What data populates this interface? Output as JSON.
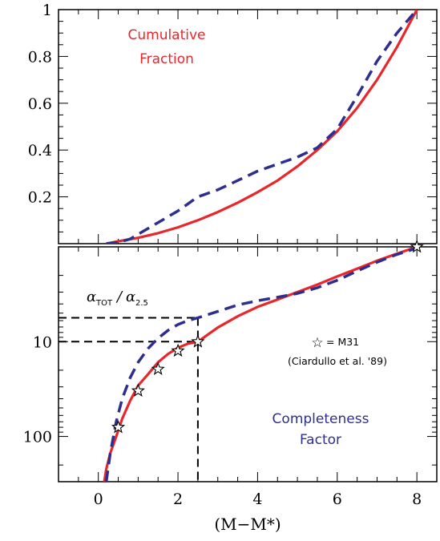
{
  "colors": {
    "red": "#e8262b",
    "blue": "#2e2e8f",
    "frame": "#000000"
  },
  "chart_data": [
    {
      "type": "line",
      "panel": "top",
      "xlim": [
        -1,
        8.5
      ],
      "ylim": [
        0,
        1
      ],
      "y_ticks": [
        0.2,
        0.4,
        0.6,
        0.8,
        1
      ],
      "y_tick_labels": [
        "0.2",
        "0.4",
        "0.6",
        "0.8",
        "1"
      ],
      "annotation": [
        "Cumulative",
        "Fraction"
      ],
      "series": [
        {
          "color": "#e8262b",
          "style": "solid",
          "x": [
            0.2,
            0.5,
            1,
            1.5,
            2,
            2.5,
            3,
            3.5,
            4,
            4.5,
            5,
            5.5,
            6,
            6.5,
            7,
            7.5,
            8
          ],
          "y": [
            0.0,
            0.01,
            0.025,
            0.045,
            0.07,
            0.1,
            0.135,
            0.175,
            0.22,
            0.27,
            0.33,
            0.4,
            0.48,
            0.58,
            0.7,
            0.84,
            1.0
          ]
        },
        {
          "color": "#2e2e8f",
          "style": "dashed",
          "x": [
            0.2,
            0.5,
            0.8,
            1.1,
            1.5,
            2,
            2.5,
            3,
            3.5,
            4,
            4.5,
            5,
            5.5,
            6,
            6.5,
            7,
            7.5,
            7.8,
            8
          ],
          "y": [
            0.0,
            0.005,
            0.02,
            0.05,
            0.09,
            0.14,
            0.2,
            0.23,
            0.27,
            0.31,
            0.34,
            0.37,
            0.41,
            0.49,
            0.63,
            0.78,
            0.9,
            0.96,
            1.0
          ]
        }
      ]
    },
    {
      "type": "line",
      "panel": "bottom",
      "xlabel": "(M−M*)",
      "xlim": [
        -1,
        8.5
      ],
      "x_ticks": [
        0,
        2,
        4,
        6,
        8
      ],
      "x_tick_labels": [
        "0",
        "2",
        "4",
        "6",
        "8"
      ],
      "y_scale": "log",
      "y_inverted": true,
      "ylim": [
        1,
        300
      ],
      "y_ticks": [
        10,
        100
      ],
      "y_tick_labels": [
        "10",
        "100"
      ],
      "annotation": [
        "Completeness",
        "Factor"
      ],
      "ratio_label": {
        "symbol": "α",
        "sub1": "TOT",
        "sub2": "2.5"
      },
      "series": [
        {
          "color": "#e8262b",
          "style": "solid",
          "x": [
            0.15,
            0.2,
            0.3,
            0.45,
            0.6,
            0.8,
            1,
            1.25,
            1.5,
            1.75,
            2,
            2.25,
            2.5,
            3,
            3.5,
            4,
            4.5,
            5,
            5.5,
            6,
            6.5,
            7,
            7.5,
            8
          ],
          "y": [
            300,
            220,
            150,
            100,
            65,
            42,
            29,
            22,
            16.5,
            13.5,
            11.6,
            10.5,
            10,
            7.1,
            5.4,
            4.3,
            3.6,
            3.0,
            2.5,
            2.05,
            1.7,
            1.4,
            1.18,
            1.0
          ]
        },
        {
          "color": "#2e2e8f",
          "style": "dashed",
          "x": [
            0.2,
            0.3,
            0.45,
            0.6,
            0.8,
            1,
            1.25,
            1.5,
            1.75,
            2,
            2.25,
            2.5,
            3,
            3.5,
            4,
            4.5,
            5,
            5.5,
            6,
            6.5,
            7,
            7.5,
            7.8,
            8.5
          ],
          "y": [
            300,
            150,
            70,
            40,
            24,
            16.5,
            11.8,
            9.2,
            7.6,
            6.6,
            6.0,
            5.6,
            4.8,
            4.1,
            3.7,
            3.4,
            3.1,
            2.7,
            2.25,
            1.8,
            1.45,
            1.2,
            1.1,
            0.85
          ]
        }
      ],
      "star_points": {
        "x": [
          0.5,
          1,
          1.5,
          2,
          2.5,
          8
        ],
        "y": [
          80,
          33,
          19.5,
          12.5,
          10,
          1.0
        ]
      },
      "star_legend": {
        "marker": "☆",
        "text": "= M31"
      },
      "reference": "(Ciardullo et al. '89)",
      "guide_lines": {
        "red": {
          "x": 2.5,
          "y": 10
        },
        "blue": {
          "x": 2.5,
          "y": 5.6
        }
      }
    }
  ]
}
